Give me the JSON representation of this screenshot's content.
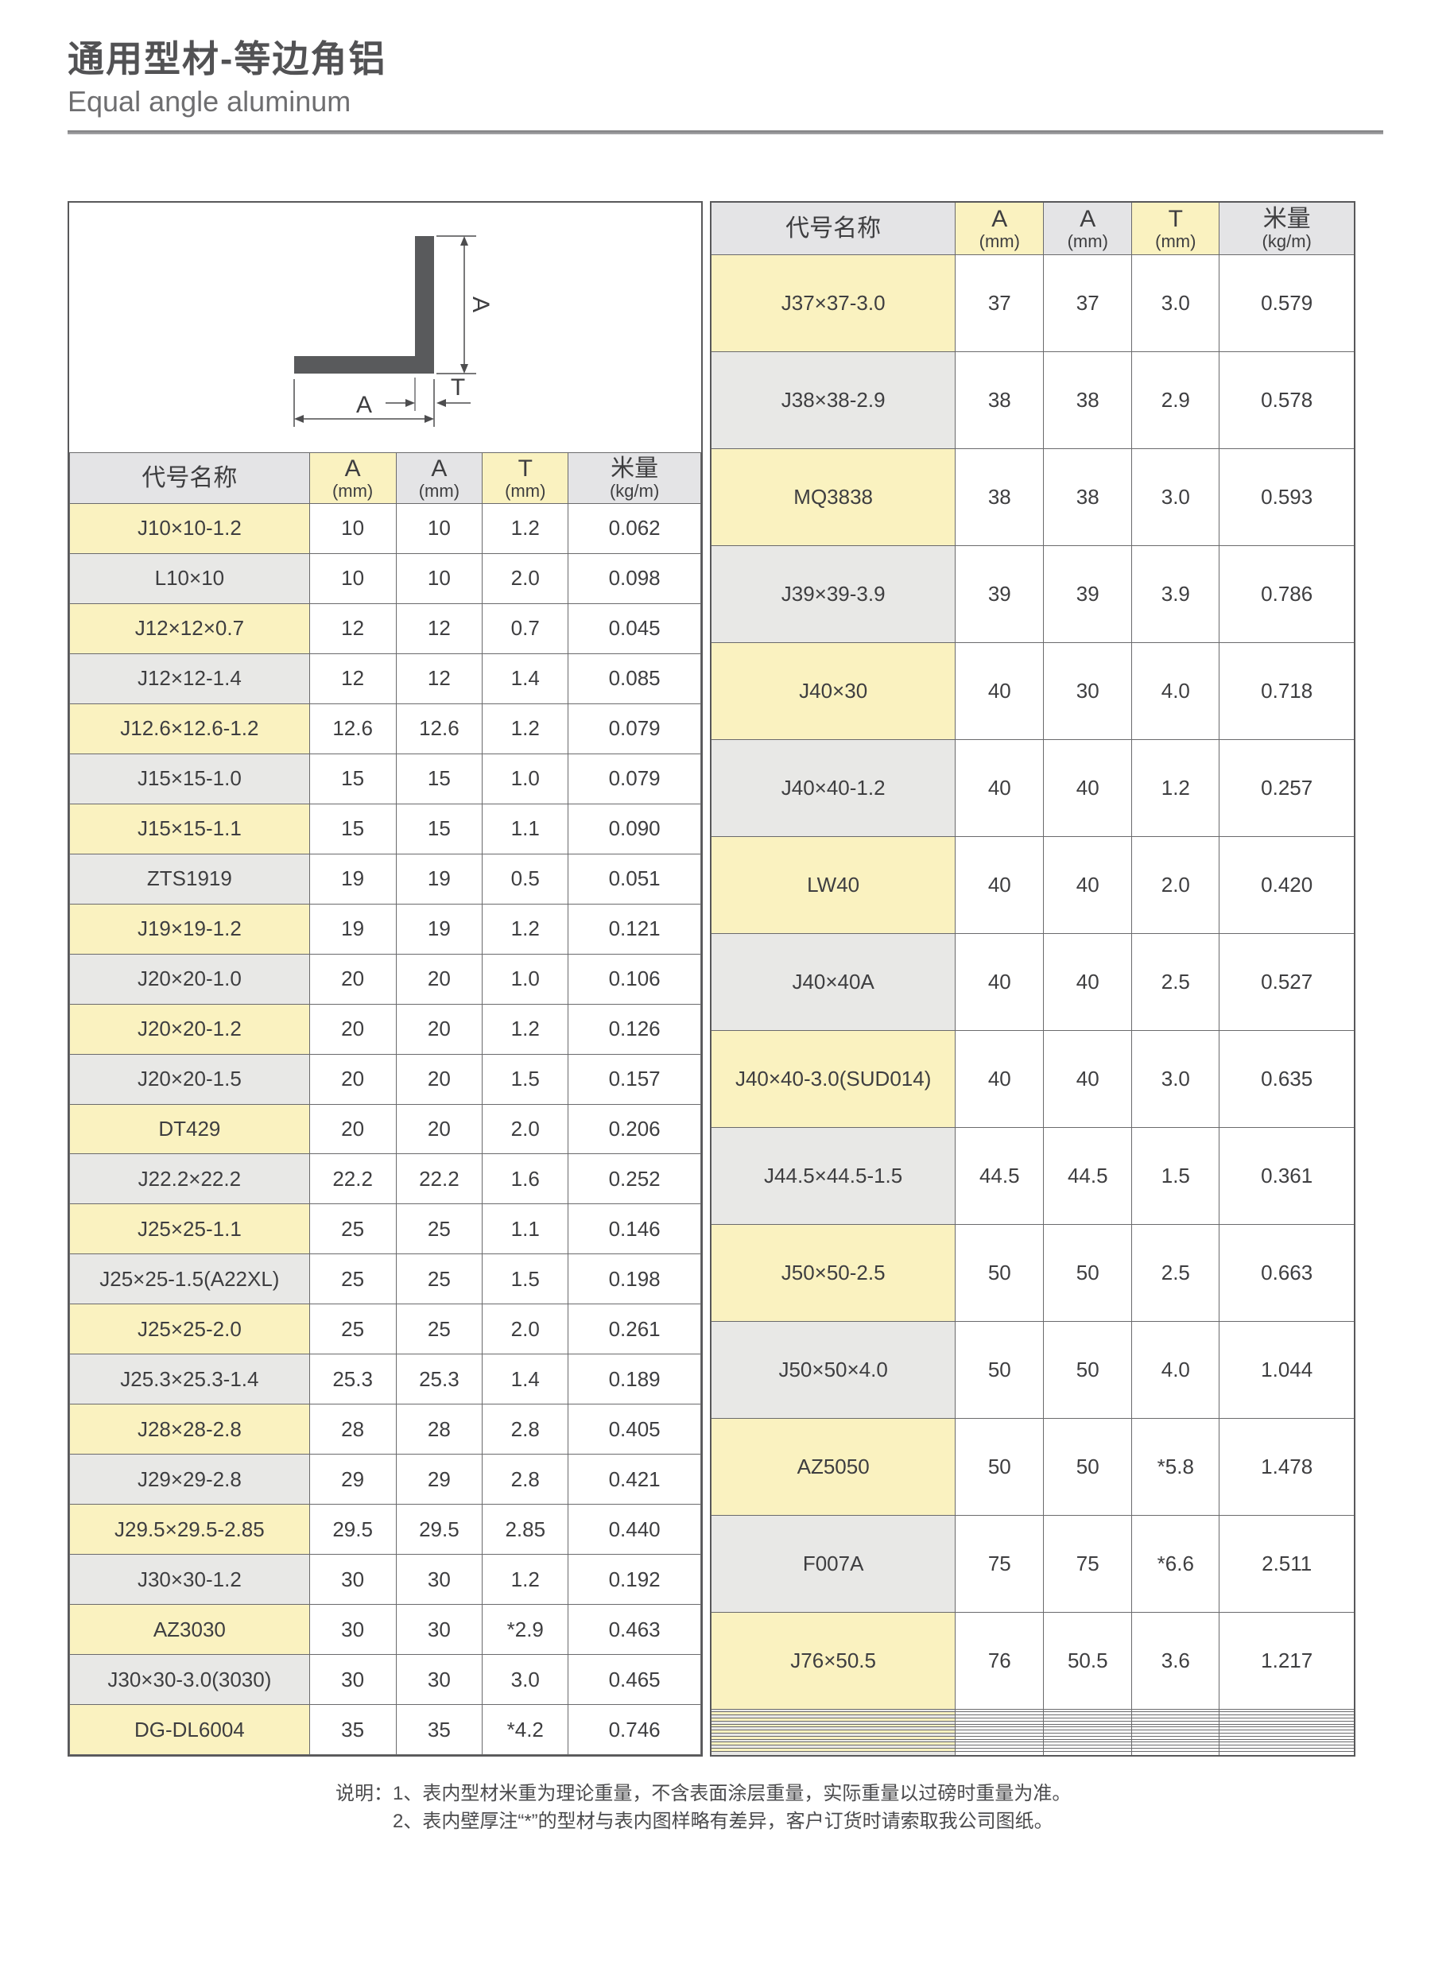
{
  "title_zh": "通用型材-等边角铝",
  "title_en": "Equal angle aluminum",
  "diagram": {
    "dim_a_vertical": "A",
    "dim_a_horizontal": "A",
    "dim_t": "T"
  },
  "columns": [
    {
      "label": "代号名称",
      "sub": ""
    },
    {
      "label": "A",
      "sub": "(mm)"
    },
    {
      "label": "A",
      "sub": "(mm)"
    },
    {
      "label": "T",
      "sub": "(mm)"
    },
    {
      "label": "米量",
      "sub": "(kg/m)"
    }
  ],
  "left_table": {
    "rows": [
      [
        "J10×10-1.2",
        "10",
        "10",
        "1.2",
        "0.062"
      ],
      [
        "L10×10",
        "10",
        "10",
        "2.0",
        "0.098"
      ],
      [
        "J12×12×0.7",
        "12",
        "12",
        "0.7",
        "0.045"
      ],
      [
        "J12×12-1.4",
        "12",
        "12",
        "1.4",
        "0.085"
      ],
      [
        "J12.6×12.6-1.2",
        "12.6",
        "12.6",
        "1.2",
        "0.079"
      ],
      [
        "J15×15-1.0",
        "15",
        "15",
        "1.0",
        "0.079"
      ],
      [
        "J15×15-1.1",
        "15",
        "15",
        "1.1",
        "0.090"
      ],
      [
        "ZTS1919",
        "19",
        "19",
        "0.5",
        "0.051"
      ],
      [
        "J19×19-1.2",
        "19",
        "19",
        "1.2",
        "0.121"
      ],
      [
        "J20×20-1.0",
        "20",
        "20",
        "1.0",
        "0.106"
      ],
      [
        "J20×20-1.2",
        "20",
        "20",
        "1.2",
        "0.126"
      ],
      [
        "J20×20-1.5",
        "20",
        "20",
        "1.5",
        "0.157"
      ],
      [
        "DT429",
        "20",
        "20",
        "2.0",
        "0.206"
      ],
      [
        "J22.2×22.2",
        "22.2",
        "22.2",
        "1.6",
        "0.252"
      ],
      [
        "J25×25-1.1",
        "25",
        "25",
        "1.1",
        "0.146"
      ],
      [
        "J25×25-1.5(A22XL)",
        "25",
        "25",
        "1.5",
        "0.198"
      ],
      [
        "J25×25-2.0",
        "25",
        "25",
        "2.0",
        "0.261"
      ],
      [
        "J25.3×25.3-1.4",
        "25.3",
        "25.3",
        "1.4",
        "0.189"
      ],
      [
        "J28×28-2.8",
        "28",
        "28",
        "2.8",
        "0.405"
      ],
      [
        "J29×29-2.8",
        "29",
        "29",
        "2.8",
        "0.421"
      ],
      [
        "J29.5×29.5-2.85",
        "29.5",
        "29.5",
        "2.85",
        "0.440"
      ],
      [
        "J30×30-1.2",
        "30",
        "30",
        "1.2",
        "0.192"
      ],
      [
        "AZ3030",
        "30",
        "30",
        "*2.9",
        "0.463"
      ],
      [
        "J30×30-3.0(3030)",
        "30",
        "30",
        "3.0",
        "0.465"
      ],
      [
        "DG-DL6004",
        "35",
        "35",
        "*4.2",
        "0.746"
      ]
    ]
  },
  "right_table": {
    "rows": [
      [
        "J37×37-3.0",
        "37",
        "37",
        "3.0",
        "0.579"
      ],
      [
        "J38×38-2.9",
        "38",
        "38",
        "2.9",
        "0.578"
      ],
      [
        "MQ3838",
        "38",
        "38",
        "3.0",
        "0.593"
      ],
      [
        "J39×39-3.9",
        "39",
        "39",
        "3.9",
        "0.786"
      ],
      [
        "J40×30",
        "40",
        "30",
        "4.0",
        "0.718"
      ],
      [
        "J40×40-1.2",
        "40",
        "40",
        "1.2",
        "0.257"
      ],
      [
        "LW40",
        "40",
        "40",
        "2.0",
        "0.420"
      ],
      [
        "J40×40A",
        "40",
        "40",
        "2.5",
        "0.527"
      ],
      [
        "J40×40-3.0(SUD014)",
        "40",
        "40",
        "3.0",
        "0.635"
      ],
      [
        "J44.5×44.5-1.5",
        "44.5",
        "44.5",
        "1.5",
        "0.361"
      ],
      [
        "J50×50-2.5",
        "50",
        "50",
        "2.5",
        "0.663"
      ],
      [
        "J50×50×4.0",
        "50",
        "50",
        "4.0",
        "1.044"
      ],
      [
        "AZ5050",
        "50",
        "50",
        "*5.8",
        "1.478"
      ],
      [
        "F007A",
        "75",
        "75",
        "*6.6",
        "2.511"
      ],
      [
        "J76×50.5",
        "76",
        "50.5",
        "3.6",
        "1.217"
      ],
      [
        "",
        "",
        "",
        "",
        ""
      ],
      [
        "",
        "",
        "",
        "",
        ""
      ],
      [
        "",
        "",
        "",
        "",
        ""
      ],
      [
        "",
        "",
        "",
        "",
        ""
      ],
      [
        "",
        "",
        "",
        "",
        ""
      ],
      [
        "",
        "",
        "",
        "",
        ""
      ],
      [
        "",
        "",
        "",
        "",
        ""
      ],
      [
        "",
        "",
        "",
        "",
        ""
      ],
      [
        "",
        "",
        "",
        "",
        ""
      ],
      [
        "",
        "",
        "",
        "",
        ""
      ],
      [
        "",
        "",
        "",
        "",
        ""
      ],
      [
        "",
        "",
        "",
        "",
        ""
      ],
      [
        "",
        "",
        "",
        "",
        ""
      ],
      [
        "",
        "",
        "",
        "",
        ""
      ],
      [
        "",
        "",
        "",
        "",
        ""
      ]
    ]
  },
  "notes": {
    "label": "说明：",
    "items": [
      "1、表内型材米重为理论重量，不含表面涂层重量，实际重量以过磅时重量为准。",
      "2、表内壁厚注“*”的型材与表内图样略有差异，客户订货时请索取我公司图纸。"
    ]
  },
  "colors": {
    "highlight_yellow": "#faf2c0",
    "cell_gray": "#e8e8e6",
    "header_gray": "#e4e4e6",
    "border": "#6a6a6c",
    "outer_border": "#58585a",
    "profile_fill": "#595a5c",
    "text": "#3e3e40"
  }
}
